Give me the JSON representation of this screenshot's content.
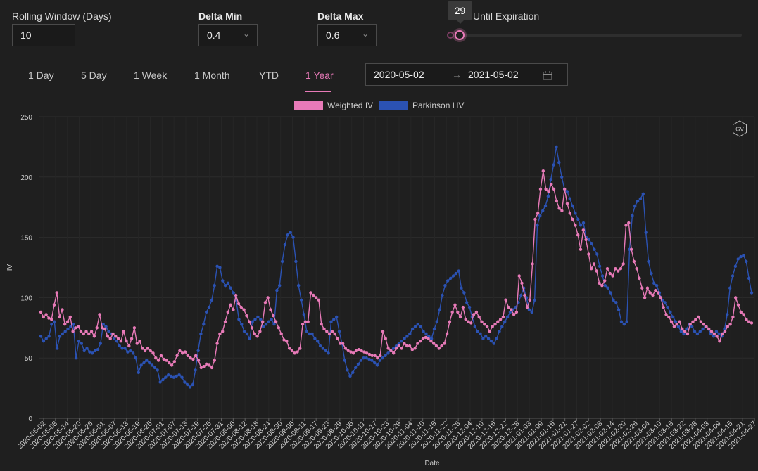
{
  "controls": {
    "rolling_window_label": "Rolling Window (Days)",
    "rolling_window_value": "10",
    "delta_min_label": "Delta Min",
    "delta_min_value": "0.4",
    "delta_max_label": "Delta Max",
    "delta_max_value": "0.6",
    "days_label": "Until Expiration",
    "days_tooltip": "29",
    "days_slider_fraction": 0.03
  },
  "tabs": [
    "1 Day",
    "5 Day",
    "1 Week",
    "1 Month",
    "YTD",
    "1 Year"
  ],
  "active_tab": "1 Year",
  "date_range": {
    "start": "2020-05-02",
    "end": "2021-05-02",
    "separator": "→"
  },
  "colors": {
    "weighted_iv": "#e87ab8",
    "parkinson_hv": "#2b52b3",
    "accent": "#e87ab8"
  },
  "chart_data": {
    "type": "line",
    "title": "",
    "xlabel": "Date",
    "ylabel": "IV",
    "ylim": [
      0,
      250
    ],
    "yticks": [
      0,
      50,
      100,
      150,
      200,
      250
    ],
    "grid": true,
    "legend": "top-center",
    "x_tick_labels": [
      "2020-05-02",
      "2020-05-08",
      "2020-05-14",
      "2020-05-20",
      "2020-05-26",
      "2020-06-01",
      "2020-06-07",
      "2020-06-13",
      "2020-06-19",
      "2020-06-25",
      "2020-07-01",
      "2020-07-07",
      "2020-07-13",
      "2020-07-19",
      "2020-07-25",
      "2020-07-31",
      "2020-08-06",
      "2020-08-12",
      "2020-08-18",
      "2020-08-24",
      "2020-08-30",
      "2020-09-05",
      "2020-09-11",
      "2020-09-17",
      "2020-09-23",
      "2020-09-29",
      "2020-10-05",
      "2020-10-11",
      "2020-10-17",
      "2020-10-23",
      "2020-10-29",
      "2020-11-04",
      "2020-11-10",
      "2020-11-16",
      "2020-11-22",
      "2020-11-28",
      "2020-12-04",
      "2020-12-10",
      "2020-12-16",
      "2020-12-22",
      "2020-12-28",
      "2021-01-03",
      "2021-01-09",
      "2021-01-15",
      "2021-01-21",
      "2021-01-27",
      "2021-02-02",
      "2021-02-08",
      "2021-02-14",
      "2021-02-20",
      "2021-02-26",
      "2021-03-04",
      "2021-03-10",
      "2021-03-16",
      "2021-03-22",
      "2021-03-28",
      "2021-04-03",
      "2021-04-09",
      "2021-04-15",
      "2021-04-21",
      "2021-04-27"
    ],
    "badge": "GV",
    "series": [
      {
        "name": "Weighted IV",
        "values": [
          88,
          84,
          86,
          83,
          82,
          94,
          104,
          84,
          90,
          78,
          80,
          84,
          72,
          75,
          76,
          72,
          70,
          72,
          70,
          72,
          68,
          75,
          86,
          75,
          74,
          68,
          66,
          70,
          68,
          66,
          64,
          72,
          64,
          60,
          66,
          75,
          62,
          64,
          58,
          56,
          58,
          56,
          54,
          50,
          48,
          52,
          49,
          48,
          46,
          44,
          47,
          52,
          56,
          54,
          55,
          52,
          50,
          49,
          52,
          48,
          42,
          43,
          45,
          44,
          42,
          48,
          62,
          70,
          72,
          80,
          88,
          94,
          90,
          102,
          95,
          92,
          90,
          85,
          80,
          75,
          70,
          68,
          72,
          80,
          96,
          100,
          90,
          85,
          80,
          75,
          70,
          65,
          64,
          58,
          56,
          54,
          55,
          58,
          78,
          80,
          80,
          104,
          102,
          100,
          98,
          78,
          74,
          72,
          70,
          72,
          70,
          66,
          62,
          62,
          58,
          56,
          55,
          54,
          56,
          57,
          56,
          55,
          54,
          53,
          52,
          52,
          50,
          52,
          72,
          66,
          58,
          56,
          54,
          58,
          60,
          58,
          62,
          60,
          60,
          57,
          58,
          62,
          64,
          66,
          67,
          66,
          64,
          62,
          60,
          58,
          60,
          62,
          70,
          80,
          88,
          94,
          88,
          84,
          92,
          82,
          80,
          79,
          86,
          88,
          84,
          80,
          78,
          76,
          72,
          76,
          78,
          80,
          82,
          84,
          98,
          92,
          90,
          86,
          88,
          118,
          112,
          102,
          92,
          98,
          128,
          165,
          170,
          190,
          205,
          190,
          188,
          194,
          190,
          180,
          174,
          172,
          190,
          178,
          170,
          165,
          160,
          152,
          140,
          156,
          148,
          136,
          124,
          128,
          122,
          112,
          110,
          114,
          124,
          120,
          118,
          124,
          122,
          124,
          128,
          160,
          162,
          140,
          130,
          124,
          116,
          108,
          100,
          108,
          104,
          102,
          106,
          104,
          100,
          92,
          86,
          84,
          80,
          76,
          78,
          80,
          74,
          72,
          70,
          78,
          80,
          82,
          84,
          80,
          78,
          76,
          74,
          72,
          70,
          68,
          64,
          70,
          72,
          76,
          78,
          84,
          100,
          94,
          88,
          86,
          82,
          80,
          79
        ]
      },
      {
        "name": "Parkinson HV",
        "values": [
          68,
          64,
          66,
          68,
          78,
          80,
          58,
          68,
          70,
          72,
          74,
          76,
          78,
          50,
          64,
          62,
          56,
          58,
          55,
          54,
          56,
          57,
          62,
          78,
          76,
          72,
          70,
          66,
          64,
          60,
          58,
          58,
          55,
          56,
          54,
          50,
          38,
          44,
          46,
          48,
          46,
          44,
          42,
          40,
          30,
          32,
          34,
          36,
          35,
          34,
          35,
          36,
          34,
          30,
          28,
          26,
          28,
          40,
          56,
          70,
          78,
          88,
          92,
          98,
          110,
          126,
          125,
          114,
          110,
          112,
          108,
          104,
          98,
          82,
          78,
          72,
          70,
          66,
          80,
          82,
          84,
          82,
          76,
          78,
          80,
          82,
          78,
          106,
          110,
          130,
          144,
          152,
          154,
          150,
          130,
          110,
          98,
          86,
          72,
          70,
          70,
          66,
          64,
          60,
          58,
          56,
          54,
          80,
          82,
          84,
          72,
          62,
          48,
          40,
          35,
          38,
          42,
          45,
          48,
          50,
          50,
          49,
          48,
          46,
          44,
          48,
          50,
          52,
          54,
          56,
          58,
          60,
          62,
          64,
          66,
          68,
          70,
          74,
          76,
          78,
          76,
          72,
          70,
          68,
          66,
          74,
          80,
          90,
          102,
          110,
          114,
          116,
          118,
          120,
          122,
          108,
          104,
          96,
          92,
          84,
          76,
          72,
          70,
          66,
          68,
          66,
          64,
          62,
          66,
          72,
          76,
          80,
          84,
          88,
          90,
          92,
          96,
          102,
          108,
          100,
          90,
          88,
          98,
          160,
          168,
          172,
          176,
          184,
          198,
          210,
          225,
          212,
          200,
          190,
          188,
          182,
          176,
          170,
          165,
          160,
          162,
          150,
          148,
          145,
          140,
          136,
          126,
          118,
          110,
          108,
          104,
          98,
          96,
          90,
          80,
          78,
          80,
          140,
          168,
          176,
          180,
          182,
          186,
          154,
          130,
          120,
          112,
          110,
          104,
          98,
          96,
          92,
          88,
          84,
          80,
          76,
          72,
          70,
          74,
          78,
          76,
          72,
          70,
          72,
          74,
          76,
          74,
          70,
          68,
          72,
          70,
          68,
          74,
          86,
          108,
          118,
          126,
          132,
          134,
          135,
          130,
          116,
          104
        ]
      }
    ]
  }
}
